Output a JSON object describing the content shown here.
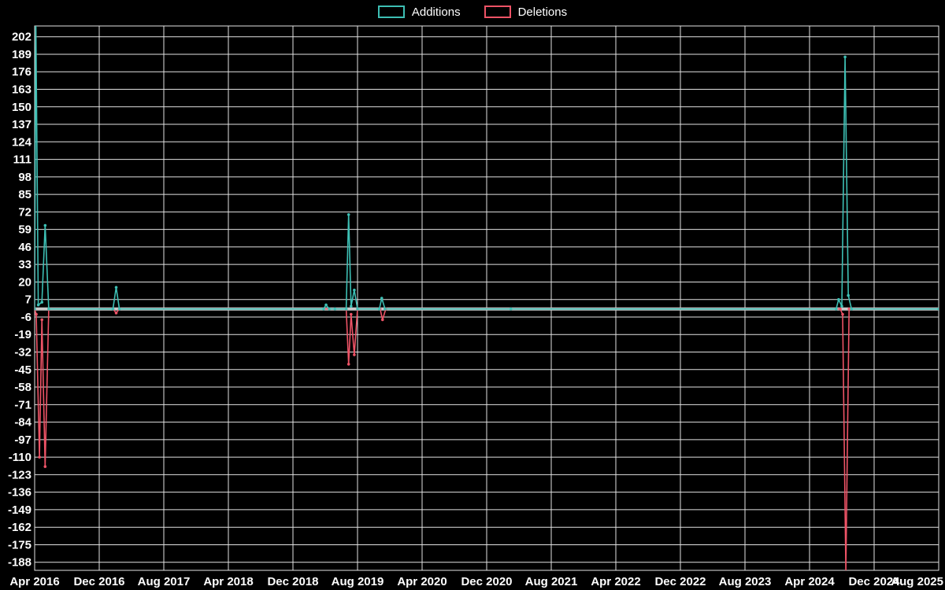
{
  "chart_data": {
    "type": "line",
    "title": "",
    "xlabel": "",
    "ylabel": "",
    "x_unit": "months_since_apr_2016",
    "xlim": [
      0,
      112
    ],
    "ylim": [
      -194,
      210
    ],
    "grid": true,
    "legend_position": "top-center",
    "background_color": "#000000",
    "grid_color": "#e2e2e2",
    "zero_line_color": "#c8c8c8",
    "text_color": "#ffffff",
    "xtick_positions": [
      0,
      8,
      16,
      24,
      32,
      40,
      48,
      56,
      64,
      72,
      80,
      88,
      96,
      104,
      112
    ],
    "xtick_labels": [
      "Apr 2016",
      "Dec 2016",
      "Aug 2017",
      "Apr 2018",
      "Dec 2018",
      "Aug 2019",
      "Apr 2020",
      "Dec 2020",
      "Aug 2021",
      "Apr 2022",
      "Dec 2022",
      "Aug 2023",
      "Apr 2024",
      "Dec 2024",
      "Aug 2025"
    ],
    "yticks": [
      202,
      189,
      176,
      163,
      150,
      137,
      124,
      111,
      98,
      85,
      72,
      59,
      46,
      33,
      20,
      7,
      -6,
      -19,
      -32,
      -45,
      -58,
      -71,
      -84,
      -97,
      -110,
      -123,
      -136,
      -149,
      -162,
      -175,
      -188
    ],
    "series": [
      {
        "name": "Additions",
        "color": "#3dbfb4",
        "points": [
          [
            0,
            0
          ],
          [
            0.15,
            215
          ],
          [
            0.45,
            3
          ],
          [
            0.9,
            5
          ],
          [
            1.3,
            62
          ],
          [
            1.75,
            0
          ],
          [
            9.7,
            0
          ],
          [
            10.1,
            16
          ],
          [
            10.5,
            0
          ],
          [
            35.8,
            0
          ],
          [
            36.1,
            3
          ],
          [
            36.5,
            0
          ],
          [
            37.2,
            0
          ],
          [
            38.6,
            0
          ],
          [
            38.9,
            70
          ],
          [
            39.2,
            2
          ],
          [
            39.6,
            14
          ],
          [
            40.0,
            0
          ],
          [
            42.7,
            0
          ],
          [
            43.0,
            8
          ],
          [
            43.4,
            0
          ],
          [
            59,
            0
          ],
          [
            99.3,
            0
          ],
          [
            99.6,
            7
          ],
          [
            100.0,
            2
          ],
          [
            100.4,
            187
          ],
          [
            100.8,
            10
          ],
          [
            101.2,
            0
          ],
          [
            112,
            0
          ]
        ]
      },
      {
        "name": "Deletions",
        "color": "#ee5366",
        "points": [
          [
            0,
            0
          ],
          [
            0.2,
            -4
          ],
          [
            0.6,
            -110
          ],
          [
            0.9,
            -8
          ],
          [
            1.3,
            -117
          ],
          [
            1.75,
            0
          ],
          [
            9.7,
            0
          ],
          [
            10.1,
            -3
          ],
          [
            10.5,
            0
          ],
          [
            38.6,
            0
          ],
          [
            38.9,
            -41
          ],
          [
            39.2,
            -4
          ],
          [
            39.6,
            -34
          ],
          [
            40.0,
            0
          ],
          [
            42.8,
            0
          ],
          [
            43.1,
            -8
          ],
          [
            43.5,
            0
          ],
          [
            59,
            0
          ],
          [
            99.8,
            0
          ],
          [
            100.1,
            -4
          ],
          [
            100.5,
            -195
          ],
          [
            100.9,
            0
          ],
          [
            112,
            0
          ]
        ]
      }
    ]
  }
}
